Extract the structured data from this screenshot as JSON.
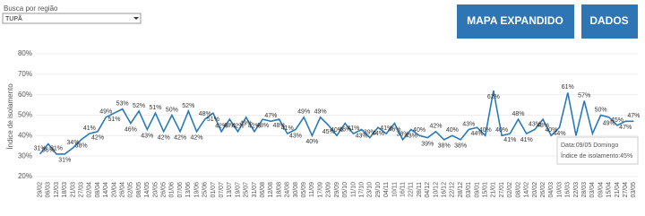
{
  "filter": {
    "label": "Busca por região",
    "value": "TUPÃ"
  },
  "buttons": [
    "MAPA EXPANDIDO",
    "DADOS"
  ],
  "tooltip": {
    "date": "Data:09/05 Domingo",
    "value": "Índice de isolamento:45%"
  },
  "chart_data": {
    "type": "line",
    "ylabel": "Índice de isolamento",
    "categories": [
      "29/02",
      "06/03",
      "12/03",
      "18/03",
      "21/03",
      "27/03",
      "02/04",
      "08/04",
      "14/04",
      "20/04",
      "26/04",
      "02/05",
      "08/05",
      "14/05",
      "20/05",
      "26/05",
      "01/06",
      "07/06",
      "13/06",
      "19/06",
      "25/06",
      "01/07",
      "07/07",
      "13/07",
      "19/07",
      "25/07",
      "31/07",
      "06/08",
      "12/08",
      "18/08",
      "24/08",
      "30/08",
      "05/09",
      "11/09",
      "17/09",
      "23/09",
      "29/09",
      "05/10",
      "11/10",
      "17/10",
      "23/10",
      "29/10",
      "04/11",
      "10/11",
      "16/11",
      "22/11",
      "28/11",
      "04/12",
      "10/12",
      "16/12",
      "22/12",
      "28/12",
      "03/01",
      "09/01",
      "15/01",
      "21/01",
      "27/01",
      "02/02",
      "08/02",
      "14/02",
      "20/02",
      "26/02",
      "04/03",
      "10/03",
      "16/03",
      "22/03",
      "28/03",
      "03/04",
      "09/04",
      "15/04",
      "21/04",
      "27/04",
      "03/05"
    ],
    "values": [
      31,
      36,
      31,
      31,
      34,
      38,
      41,
      42,
      49,
      51,
      53,
      46,
      52,
      43,
      51,
      42,
      50,
      42,
      52,
      42,
      48,
      51,
      42,
      48,
      42,
      49,
      42,
      48,
      47,
      48,
      41,
      43,
      49,
      40,
      49,
      45,
      40,
      46,
      41,
      43,
      39,
      44,
      41,
      46,
      38,
      43,
      40,
      39,
      42,
      38,
      40,
      38,
      43,
      44,
      40,
      62,
      40,
      41,
      48,
      41,
      43,
      48,
      40,
      44,
      61,
      40,
      57,
      41,
      50,
      49,
      45,
      47,
      47
    ],
    "value_labels": [
      "31%",
      "36%",
      "31%",
      "31%",
      "34%",
      "38%",
      "41%",
      "42%",
      "49%",
      "51%",
      "53%",
      "46%",
      "52%",
      "43%",
      "51%",
      "42%",
      "50%",
      "42%",
      "52%",
      "42%",
      "48%",
      "51%",
      "42%",
      "48%",
      "42%",
      "49%",
      "42%",
      "48%",
      "47%",
      "48%",
      "41%",
      "43%",
      "49%",
      "40%",
      "49%",
      "45%",
      "40%",
      "46%",
      "41%",
      "43%",
      "39%",
      "44%",
      "41%",
      "46%",
      "38%",
      "43%",
      "40%",
      "39%",
      "42%",
      "38%",
      "40%",
      "38%",
      "43%",
      "44%",
      "40%",
      "62%",
      "40%",
      "41%",
      "48%",
      "41%",
      "43%",
      "48%",
      "40%",
      "44%",
      "61%",
      "40%",
      "57%",
      "41%",
      "50%",
      "49%",
      "45%",
      "47%",
      "47%"
    ],
    "color": "#2a7ab8",
    "ylim": [
      20,
      80
    ],
    "yticks": [
      {
        "value": 20,
        "label": "20%"
      },
      {
        "value": 30,
        "label": "30%"
      },
      {
        "value": 40,
        "label": "40%"
      },
      {
        "value": 50,
        "label": "50%"
      },
      {
        "value": 60,
        "label": "60%"
      },
      {
        "value": 70,
        "label": "70%"
      },
      {
        "value": 80,
        "label": "80%"
      }
    ],
    "grid": true
  }
}
